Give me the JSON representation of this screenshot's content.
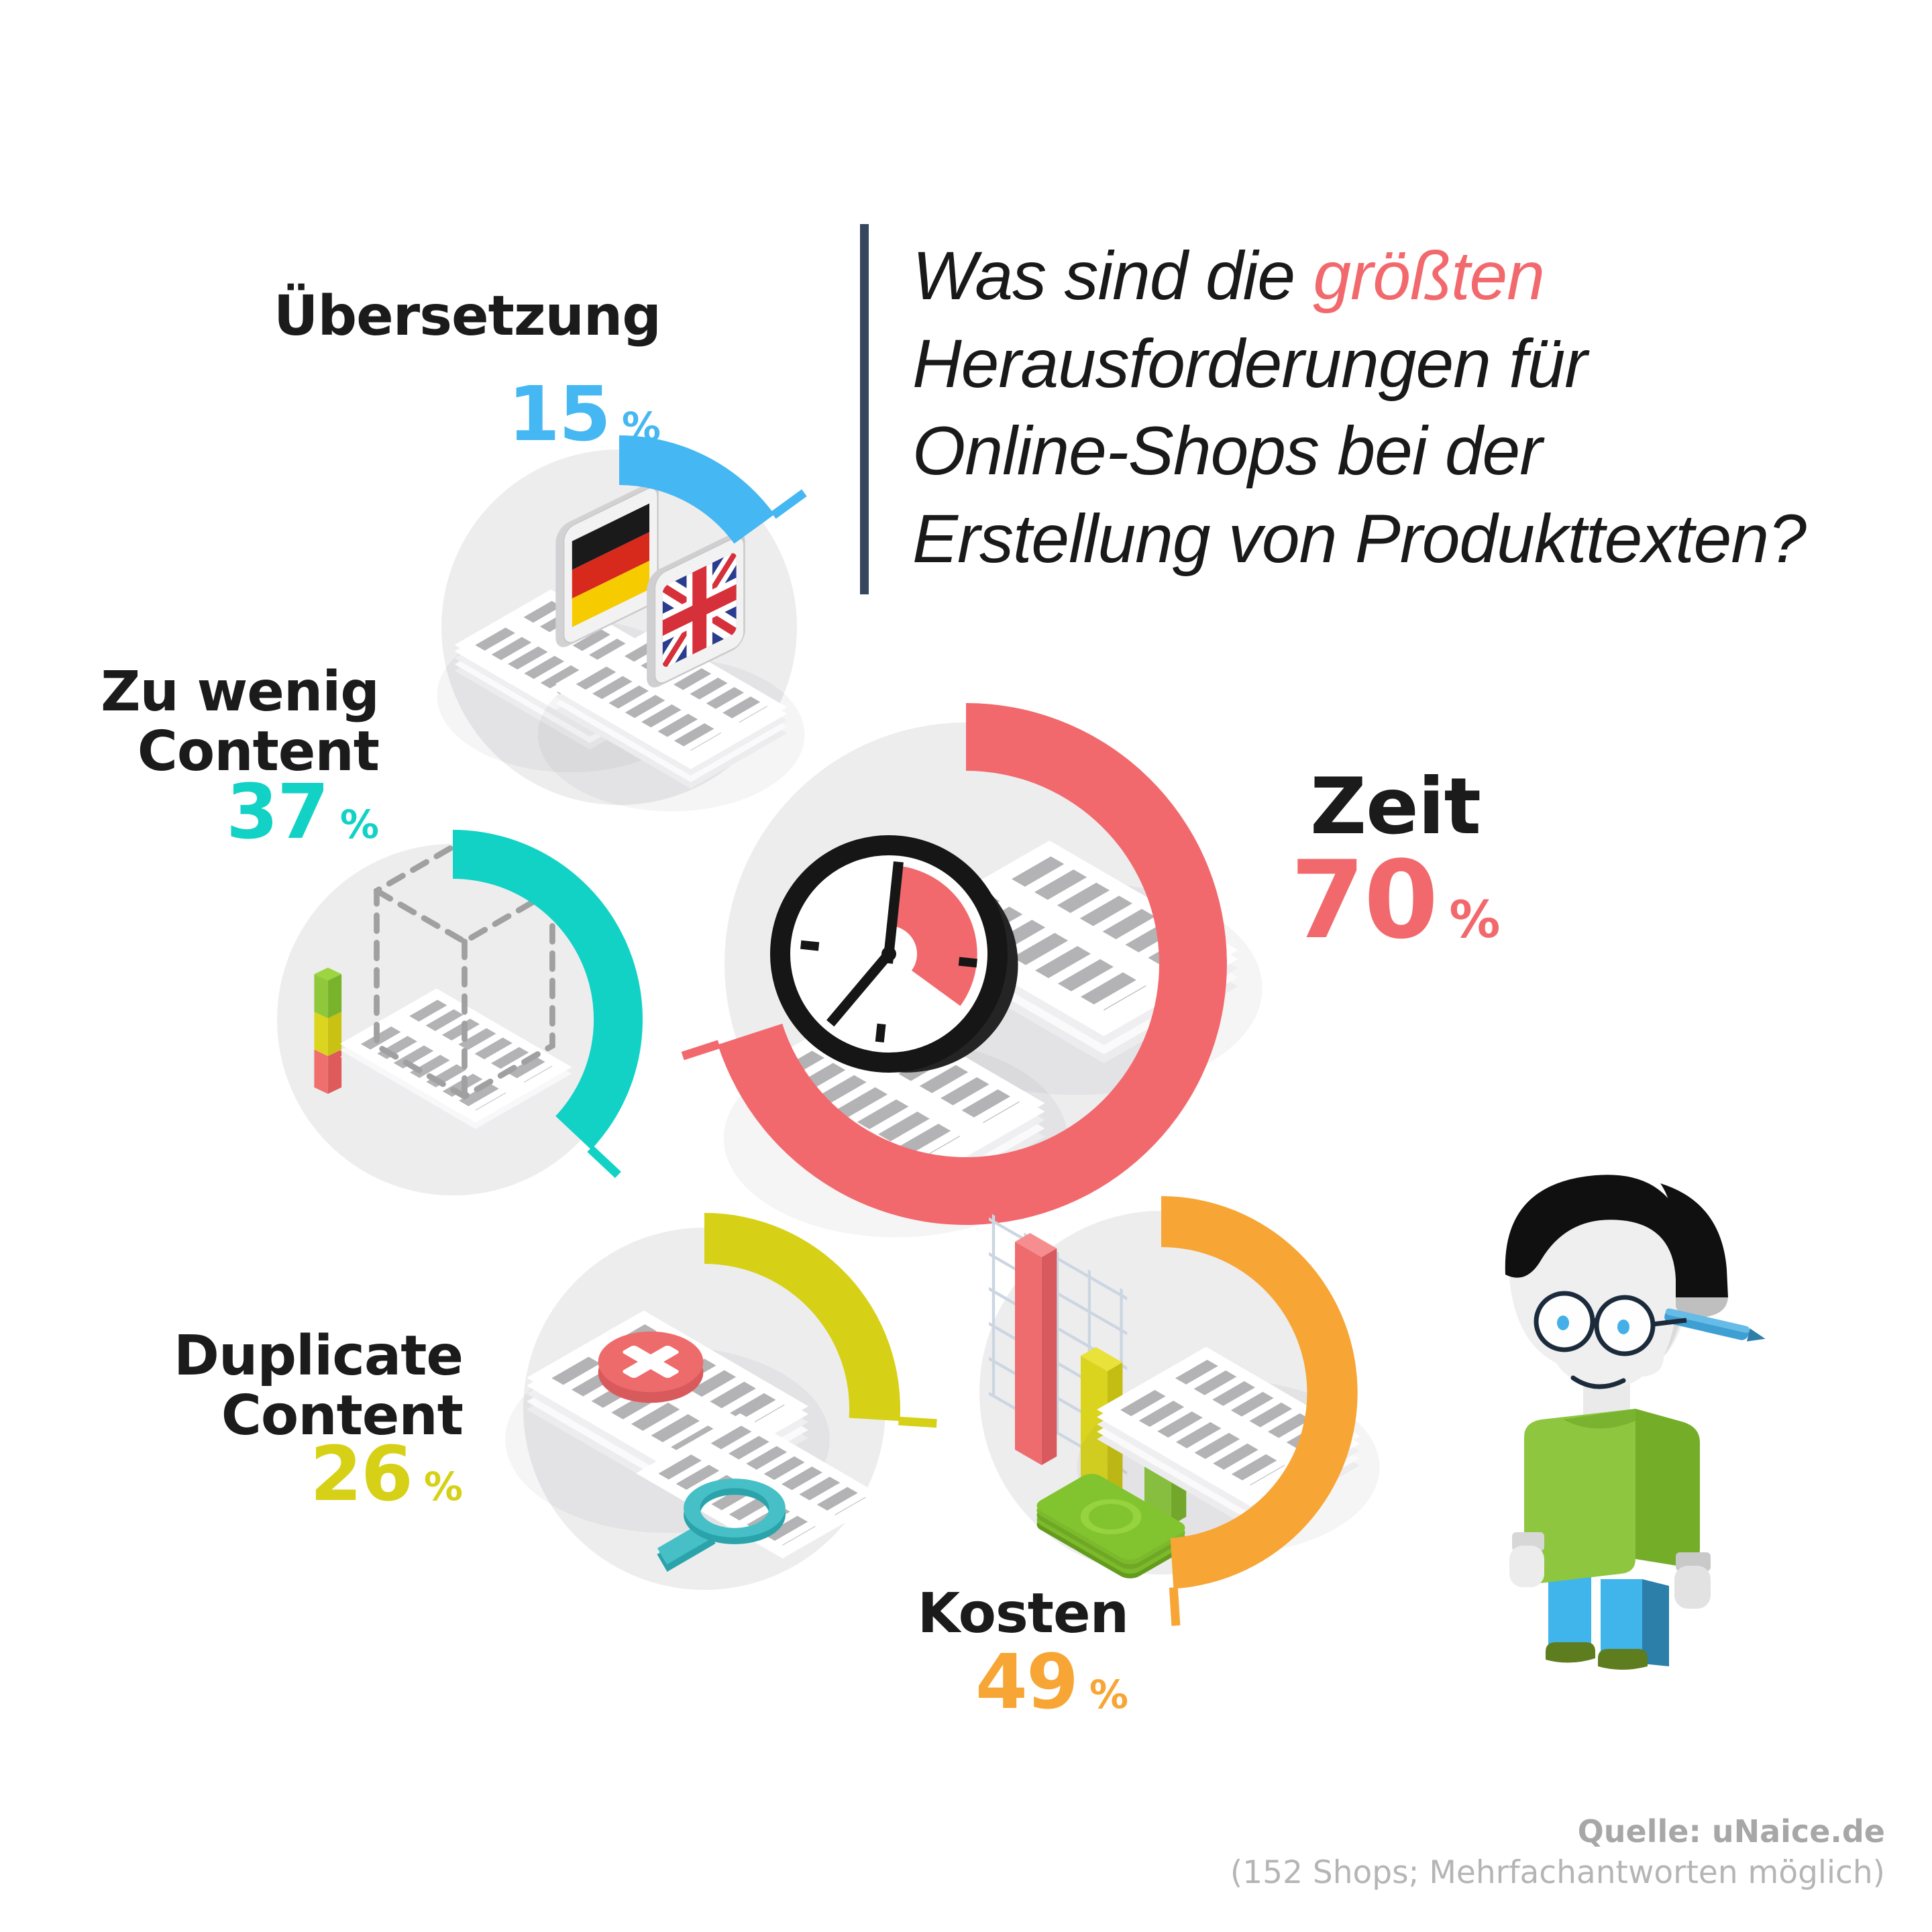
{
  "title": {
    "line1_pre": "Was sind die ",
    "line1_highlight": "größten",
    "line2": "Herausforderungen für",
    "line3": "Online-Shops bei der",
    "line4": "Erstellung von Produkttexten?",
    "highlight_color": "#f2696d",
    "accent_bar_color": "#36465c"
  },
  "segments": [
    {
      "id": "uebersetzung",
      "label": "Übersetzung",
      "value": 15,
      "unit": "%",
      "color": "#45b7f2",
      "icon": "german-english-documents-icon"
    },
    {
      "id": "zu-wenig-content",
      "label": "Zu wenig Content",
      "label_line1": "Zu wenig",
      "label_line2": "Content",
      "value": 37,
      "unit": "%",
      "color": "#12d2c6",
      "icon": "empty-cube-documents-icon"
    },
    {
      "id": "zeit",
      "label": "Zeit",
      "value": 70,
      "unit": "%",
      "color": "#f2696d",
      "icon": "clock-documents-icon"
    },
    {
      "id": "duplicate-content",
      "label": "Duplicate Content",
      "label_line1": "Duplicate",
      "label_line2": "Content",
      "value": 26,
      "unit": "%",
      "color": "#d6d116",
      "icon": "duplicate-pages-magnifier-icon"
    },
    {
      "id": "kosten",
      "label": "Kosten",
      "value": 49,
      "unit": "%",
      "color": "#f7a535",
      "icon": "costs-bars-money-icon"
    }
  ],
  "source": {
    "line1": "Quelle: uNaice.de",
    "line2": "(152 Shops; Mehrfachantworten möglich)"
  },
  "mascot": {
    "name": "unaice-writer-mascot"
  },
  "chart_data": {
    "type": "pie",
    "title": "Was sind die größten Herausforderungen für Online-Shops bei der Erstellung von Produkttexten?",
    "categories": [
      "Übersetzung",
      "Zu wenig Content",
      "Zeit",
      "Duplicate Content",
      "Kosten"
    ],
    "values": [
      15,
      37,
      70,
      26,
      49
    ],
    "unit": "%",
    "colors": [
      "#45b7f2",
      "#12d2c6",
      "#f2696d",
      "#d6d116",
      "#f7a535"
    ],
    "note": "152 Shops; Mehrfachantworten möglich",
    "layout": "five separate donut-progress rings, each starting at 12 o'clock running clockwise, grey disc with isometric illustration inside"
  }
}
